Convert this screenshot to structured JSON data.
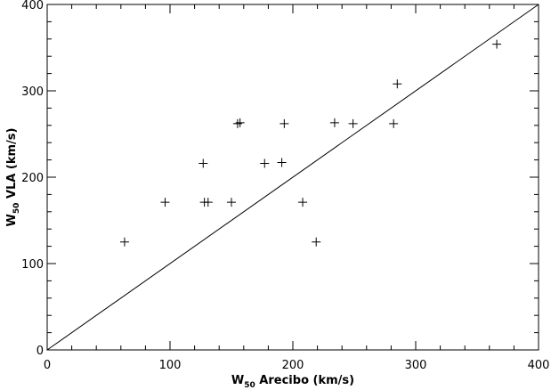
{
  "chart_data": {
    "type": "scatter",
    "title": "",
    "xlabel": {
      "main": "W",
      "sub": "50",
      "rest": " Arecibo (km/s)"
    },
    "ylabel": {
      "main": "W",
      "sub": "50",
      "rest": " VLA (km/s)"
    },
    "xlim": [
      0,
      400
    ],
    "ylim": [
      0,
      400
    ],
    "xticks": [
      0,
      100,
      200,
      300,
      400
    ],
    "yticks": [
      0,
      100,
      200,
      300,
      400
    ],
    "xtick_labels": [
      "0",
      "100",
      "200",
      "300",
      "400"
    ],
    "ytick_labels": [
      "0",
      "100",
      "200",
      "300",
      "400"
    ],
    "marker": "plus",
    "reference_line": {
      "x": [
        0,
        400
      ],
      "y": [
        0,
        400
      ]
    },
    "points": [
      {
        "x": 63,
        "y": 125
      },
      {
        "x": 96,
        "y": 171
      },
      {
        "x": 127,
        "y": 216
      },
      {
        "x": 128,
        "y": 171
      },
      {
        "x": 131,
        "y": 171
      },
      {
        "x": 150,
        "y": 171
      },
      {
        "x": 155,
        "y": 262
      },
      {
        "x": 157,
        "y": 263
      },
      {
        "x": 177,
        "y": 216
      },
      {
        "x": 191,
        "y": 217
      },
      {
        "x": 193,
        "y": 262
      },
      {
        "x": 208,
        "y": 171
      },
      {
        "x": 219,
        "y": 125
      },
      {
        "x": 234,
        "y": 263
      },
      {
        "x": 249,
        "y": 262
      },
      {
        "x": 282,
        "y": 262
      },
      {
        "x": 285,
        "y": 308
      },
      {
        "x": 366,
        "y": 354
      }
    ]
  }
}
